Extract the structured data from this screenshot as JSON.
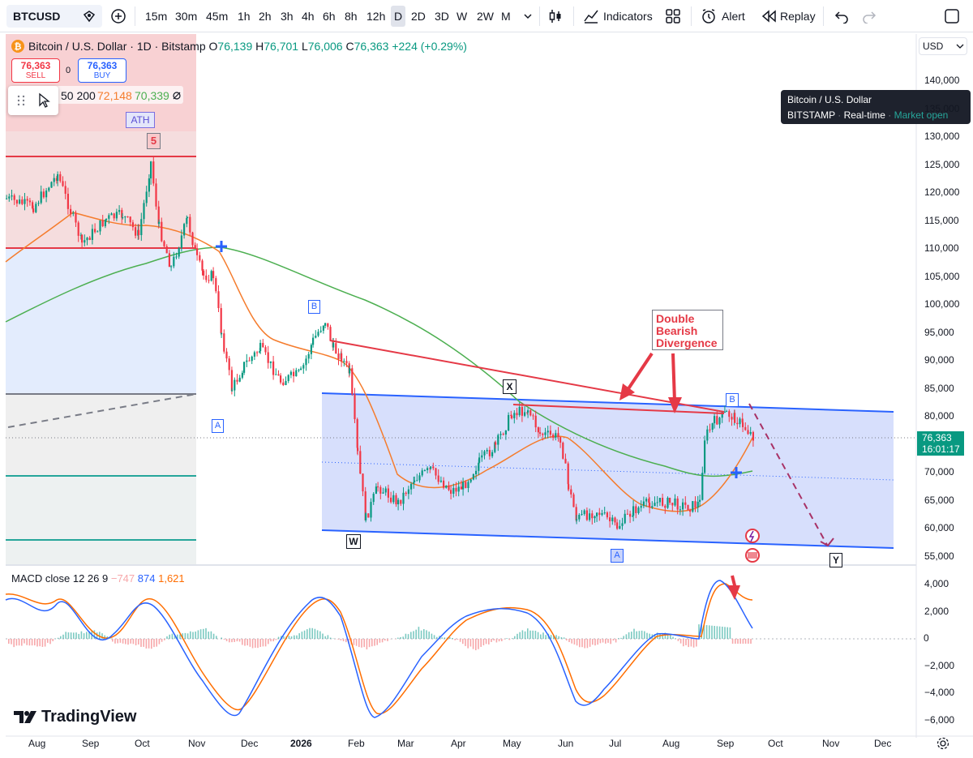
{
  "toolbar": {
    "symbol": "BTCUSD",
    "intervals": [
      "15m",
      "30m",
      "45m",
      "1h",
      "2h",
      "3h",
      "4h",
      "6h",
      "8h",
      "12h",
      "D",
      "2D",
      "3D",
      "W",
      "2W",
      "M"
    ],
    "selected_interval": "D",
    "indicators_label": "Indicators",
    "alert_label": "Alert",
    "replay_label": "Replay"
  },
  "legend": {
    "title": "Bitcoin / U.S. Dollar · 1D · Bitstamp",
    "o_label": "O",
    "o_value": "76,139",
    "h_label": "H",
    "h_value": "76,701",
    "l_label": "L",
    "l_value": "76,006",
    "c_label": "C",
    "c_value": "76,363",
    "change": "+224 (+0.29%)",
    "sell_price": "76,363",
    "sell_label": "SELL",
    "spread": "0",
    "buy_price": "76,363",
    "buy_label": "BUY",
    "ma_label": "50 200",
    "ma50_value": "72,148",
    "ma200_value": "70,339"
  },
  "tooltip": {
    "line1": "Bitcoin / U.S. Dollar",
    "exchange": "BITSTAMP",
    "realtime": "Real-time",
    "market": "Market open"
  },
  "price_axis": {
    "currency": "USD",
    "labels": [
      "140,000",
      "135,000",
      "130,000",
      "125,000",
      "120,000",
      "115,000",
      "110,000",
      "105,000",
      "100,000",
      "95,000",
      "90,000",
      "85,000",
      "80,000",
      "75,000",
      "70,000",
      "65,000",
      "60,000",
      "55,000"
    ],
    "current_price": "76,363",
    "countdown": "16:01:17"
  },
  "macd": {
    "label": "MACD close 12 26 9",
    "hist_value": "−747",
    "macd_value": "874",
    "signal_value": "1,621",
    "axis_labels": [
      "4,000",
      "2,000",
      "0",
      "−2,000",
      "−4,000",
      "−6,000"
    ]
  },
  "time_axis": {
    "labels": [
      "Aug",
      "Sep",
      "Oct",
      "Nov",
      "Dec",
      "2026",
      "Feb",
      "Mar",
      "Apr",
      "May",
      "Jun",
      "Jul",
      "Aug",
      "Sep",
      "Oct",
      "Nov",
      "Dec"
    ]
  },
  "annotations": {
    "ath": "ATH",
    "wave5": "5",
    "A1": "A",
    "B1": "B",
    "W": "W",
    "X": "X",
    "B2": "B",
    "A2": "A",
    "Y": "Y",
    "divergence": [
      "Double",
      "Bearish",
      "Divergence"
    ]
  },
  "brand": "TradingView",
  "colors": {
    "up": "#089981",
    "down": "#f23645",
    "ma50": "#f57c2d",
    "ma200": "#4caf50",
    "channel_fill": "#c9d4fb",
    "channel_line": "#2962ff",
    "macd_line": "#2962ff",
    "signal_line": "#ff6d00",
    "annotation_red": "#e53946"
  }
}
